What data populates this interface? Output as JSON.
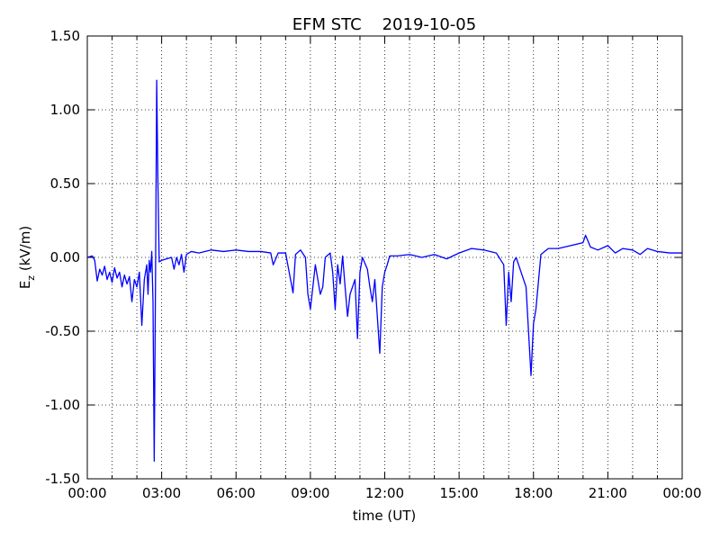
{
  "chart_data": {
    "type": "line",
    "title": "EFM STC    2019-10-05",
    "xlabel": "time (UT)",
    "ylabel_parts": [
      "E",
      "z",
      " (kV/m)"
    ],
    "xlim": [
      0,
      24
    ],
    "xticks": [
      {
        "value": 0,
        "label": "00:00"
      },
      {
        "value": 3,
        "label": "03:00"
      },
      {
        "value": 6,
        "label": "06:00"
      },
      {
        "value": 9,
        "label": "09:00"
      },
      {
        "value": 12,
        "label": "12:00"
      },
      {
        "value": 15,
        "label": "15:00"
      },
      {
        "value": 18,
        "label": "18:00"
      },
      {
        "value": 21,
        "label": "21:00"
      },
      {
        "value": 24,
        "label": "00:00"
      }
    ],
    "xminor": [
      1,
      2,
      4,
      5,
      7,
      8,
      10,
      11,
      13,
      14,
      16,
      17,
      19,
      20,
      22,
      23
    ],
    "ylim": [
      -1.5,
      1.5
    ],
    "yticks": [
      {
        "value": -1.5,
        "label": "-1.50"
      },
      {
        "value": -1,
        "label": "-1.00"
      },
      {
        "value": -0.5,
        "label": "-0.50"
      },
      {
        "value": 0,
        "label": "0.00"
      },
      {
        "value": 0.5,
        "label": "0.50"
      },
      {
        "value": 1,
        "label": "1.00"
      },
      {
        "value": 1.5,
        "label": "1.50"
      }
    ],
    "grid": true,
    "series": [
      {
        "color": "#0000ff",
        "x": [
          0,
          0.2,
          0.3,
          0.4,
          0.5,
          0.6,
          0.7,
          0.8,
          0.9,
          1.0,
          1.1,
          1.2,
          1.3,
          1.4,
          1.5,
          1.6,
          1.7,
          1.8,
          1.9,
          2.0,
          2.1,
          2.2,
          2.3,
          2.4,
          2.45,
          2.5,
          2.55,
          2.6,
          2.65,
          2.7,
          2.75,
          2.8,
          2.85,
          2.9,
          3.0,
          3.2,
          3.4,
          3.5,
          3.6,
          3.7,
          3.8,
          3.9,
          4.0,
          4.2,
          4.5,
          5.0,
          5.5,
          6.0,
          6.5,
          7.0,
          7.4,
          7.5,
          7.7,
          8.0,
          8.2,
          8.3,
          8.4,
          8.6,
          8.8,
          8.9,
          9.0,
          9.1,
          9.2,
          9.4,
          9.5,
          9.6,
          9.8,
          9.9,
          10.0,
          10.1,
          10.2,
          10.3,
          10.4,
          10.5,
          10.6,
          10.8,
          10.9,
          11.0,
          11.1,
          11.3,
          11.4,
          11.5,
          11.6,
          11.7,
          11.8,
          11.9,
          12.0,
          12.1,
          12.2,
          12.5,
          13.0,
          13.5,
          14.0,
          14.5,
          15.0,
          15.5,
          16.0,
          16.5,
          16.8,
          16.9,
          17.0,
          17.1,
          17.2,
          17.3,
          17.5,
          17.7,
          17.8,
          17.9,
          18.0,
          18.1,
          18.3,
          18.6,
          19.0,
          19.5,
          20.0,
          20.1,
          20.3,
          20.6,
          21.0,
          21.3,
          21.6,
          22.0,
          22.3,
          22.6,
          23.0,
          23.5,
          24.0
        ],
        "values": [
          0.0,
          0.01,
          -0.02,
          -0.16,
          -0.08,
          -0.12,
          -0.06,
          -0.15,
          -0.1,
          -0.17,
          -0.07,
          -0.14,
          -0.1,
          -0.2,
          -0.12,
          -0.18,
          -0.13,
          -0.3,
          -0.15,
          -0.2,
          -0.1,
          -0.46,
          -0.15,
          -0.05,
          -0.25,
          -0.02,
          -0.1,
          0.04,
          -0.3,
          -1.38,
          -0.2,
          1.2,
          0.5,
          -0.03,
          -0.02,
          -0.01,
          0.0,
          -0.08,
          0.0,
          -0.05,
          0.02,
          -0.1,
          0.02,
          0.04,
          0.03,
          0.05,
          0.04,
          0.05,
          0.04,
          0.04,
          0.03,
          -0.05,
          0.03,
          0.03,
          -0.15,
          -0.24,
          0.02,
          0.05,
          0.0,
          -0.25,
          -0.35,
          -0.2,
          -0.05,
          -0.25,
          -0.2,
          0.0,
          0.03,
          -0.1,
          -0.35,
          -0.05,
          -0.18,
          0.01,
          -0.2,
          -0.4,
          -0.25,
          -0.15,
          -0.55,
          -0.1,
          0.0,
          -0.08,
          -0.2,
          -0.3,
          -0.15,
          -0.4,
          -0.65,
          -0.2,
          -0.1,
          -0.05,
          0.01,
          0.01,
          0.02,
          0.0,
          0.02,
          -0.01,
          0.03,
          0.06,
          0.05,
          0.03,
          -0.05,
          -0.46,
          -0.1,
          -0.3,
          -0.03,
          0.0,
          -0.1,
          -0.2,
          -0.5,
          -0.8,
          -0.45,
          -0.35,
          0.02,
          0.06,
          0.06,
          0.08,
          0.1,
          0.15,
          0.07,
          0.05,
          0.08,
          0.03,
          0.06,
          0.05,
          0.02,
          0.06,
          0.04,
          0.03,
          0.03
        ]
      }
    ]
  }
}
